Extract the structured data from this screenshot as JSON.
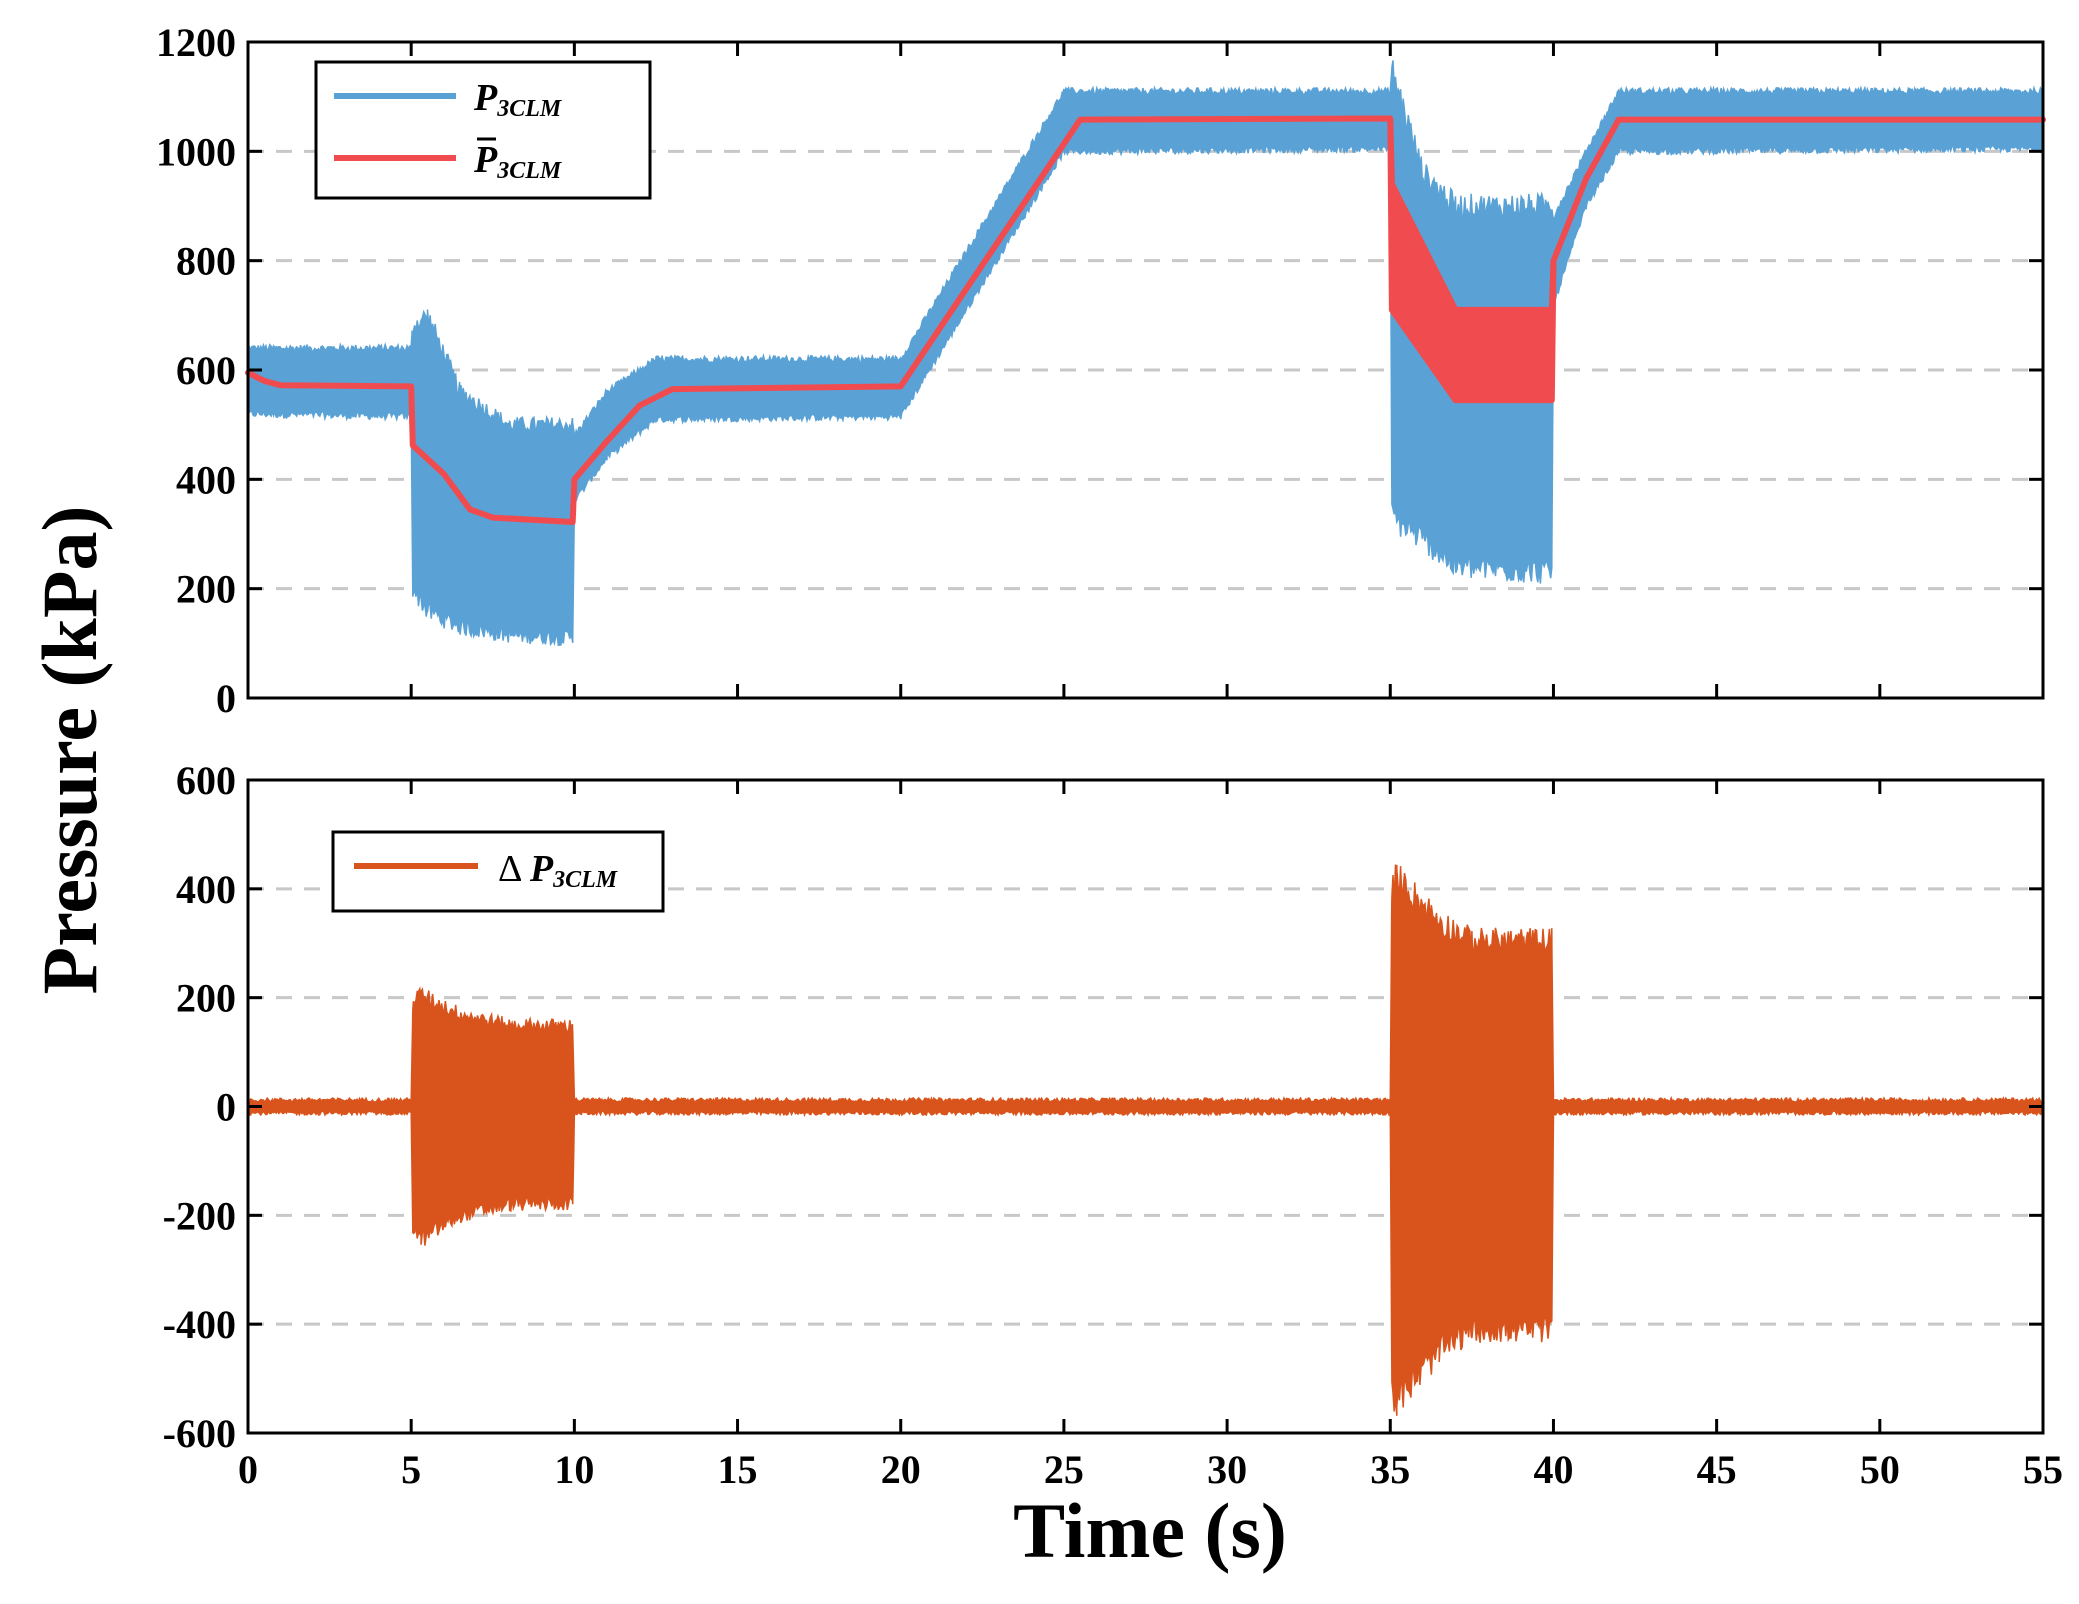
{
  "colors": {
    "p_measured": "#5aa2d6",
    "p_mean": "#f04c4f",
    "delta_p": "#d9541c",
    "grid": "#c8c8c8",
    "axis": "#000000"
  },
  "labels": {
    "ylabel": "Pressure (kPa)",
    "xlabel": "Time (s)"
  },
  "chart_data": [
    {
      "type": "line",
      "panel": "top",
      "xlim": [
        0,
        55
      ],
      "ylim": [
        0,
        1200
      ],
      "xticks": [
        0,
        5,
        10,
        15,
        20,
        25,
        30,
        35,
        40,
        45,
        50,
        55
      ],
      "yticks": [
        0,
        200,
        400,
        600,
        800,
        1000,
        1200
      ],
      "ytick_labels": [
        "0",
        "200",
        "400",
        "600",
        "800",
        "1000",
        "1200"
      ],
      "grid": "horizontal-dashed",
      "legend_position": "top-left",
      "legend": [
        {
          "base": "P",
          "sub": "3CLM",
          "bar": false
        },
        {
          "base": "P",
          "sub": "3CLM",
          "bar": true
        }
      ],
      "series": [
        {
          "name": "P3CLM",
          "kind": "noisy-band",
          "points": [
            {
              "x": 0,
              "upper": 640,
              "lower": 520
            },
            {
              "x": 5,
              "upper": 640,
              "lower": 515
            },
            {
              "x": 5.05,
              "upper": 680,
              "lower": 200
            },
            {
              "x": 5.5,
              "upper": 700,
              "lower": 160
            },
            {
              "x": 6.5,
              "upper": 560,
              "lower": 130
            },
            {
              "x": 8,
              "upper": 500,
              "lower": 115
            },
            {
              "x": 9.95,
              "upper": 500,
              "lower": 110
            },
            {
              "x": 10,
              "upper": 480,
              "lower": 360
            },
            {
              "x": 11,
              "upper": 560,
              "lower": 440
            },
            {
              "x": 12.5,
              "upper": 620,
              "lower": 510
            },
            {
              "x": 20,
              "upper": 620,
              "lower": 515
            },
            {
              "x": 25,
              "upper": 1110,
              "lower": 1000
            },
            {
              "x": 35,
              "upper": 1110,
              "lower": 1005
            },
            {
              "x": 35.05,
              "upper": 1150,
              "lower": 330
            },
            {
              "x": 36,
              "upper": 960,
              "lower": 290
            },
            {
              "x": 37,
              "upper": 900,
              "lower": 240
            },
            {
              "x": 39.95,
              "upper": 900,
              "lower": 230
            },
            {
              "x": 40,
              "upper": 880,
              "lower": 720
            },
            {
              "x": 41,
              "upper": 1000,
              "lower": 900
            },
            {
              "x": 42,
              "upper": 1110,
              "lower": 1000
            },
            {
              "x": 55,
              "upper": 1110,
              "lower": 1005
            }
          ]
        },
        {
          "name": "P3CLM mean",
          "kind": "mean",
          "points": [
            {
              "x": 0,
              "upper": 595,
              "lower": 595
            },
            {
              "x": 0.5,
              "upper": 580,
              "lower": 580
            },
            {
              "x": 1,
              "upper": 572,
              "lower": 572
            },
            {
              "x": 5,
              "upper": 570,
              "lower": 570
            },
            {
              "x": 5.05,
              "upper": 462,
              "lower": 462
            },
            {
              "x": 6,
              "upper": 410,
              "lower": 410
            },
            {
              "x": 6.8,
              "upper": 345,
              "lower": 345
            },
            {
              "x": 7.5,
              "upper": 330,
              "lower": 330
            },
            {
              "x": 9.95,
              "upper": 322,
              "lower": 322
            },
            {
              "x": 10,
              "upper": 400,
              "lower": 400
            },
            {
              "x": 11,
              "upper": 470,
              "lower": 470
            },
            {
              "x": 12,
              "upper": 535,
              "lower": 535
            },
            {
              "x": 13,
              "upper": 565,
              "lower": 565
            },
            {
              "x": 20,
              "upper": 570,
              "lower": 570
            },
            {
              "x": 25.5,
              "upper": 1058,
              "lower": 1058
            },
            {
              "x": 35,
              "upper": 1060,
              "lower": 1060
            },
            {
              "x": 35.05,
              "upper": 940,
              "lower": 710
            },
            {
              "x": 37,
              "upper": 710,
              "lower": 545
            },
            {
              "x": 39.95,
              "upper": 710,
              "lower": 545
            },
            {
              "x": 40,
              "upper": 800,
              "lower": 800
            },
            {
              "x": 41,
              "upper": 950,
              "lower": 950
            },
            {
              "x": 42,
              "upper": 1058,
              "lower": 1058
            },
            {
              "x": 55,
              "upper": 1058,
              "lower": 1058
            }
          ]
        }
      ]
    },
    {
      "type": "line",
      "panel": "bottom",
      "xlim": [
        0,
        55
      ],
      "ylim": [
        -600,
        600
      ],
      "xticks": [
        0,
        5,
        10,
        15,
        20,
        25,
        30,
        35,
        40,
        45,
        50,
        55
      ],
      "yticks": [
        -600,
        -400,
        -200,
        0,
        200,
        400,
        600
      ],
      "ytick_labels": [
        "-600",
        "-400",
        "-200",
        "0",
        "200",
        "400",
        "600"
      ],
      "xtick_labels": [
        "0",
        "5",
        "10",
        "15",
        "20",
        "25",
        "30",
        "35",
        "40",
        "45",
        "50",
        "55"
      ],
      "grid": "horizontal-dashed",
      "legend_position": "top-left",
      "legend": [
        {
          "prefix": "Δ ",
          "base": "P",
          "sub": "3CLM",
          "bar": false
        }
      ],
      "series": [
        {
          "name": "ΔP3CLM",
          "kind": "noisy-band",
          "points": [
            {
              "x": 0,
              "upper": 12,
              "lower": -12
            },
            {
              "x": 5,
              "upper": 12,
              "lower": -12
            },
            {
              "x": 5.05,
              "upper": 190,
              "lower": -220
            },
            {
              "x": 5.3,
              "upper": 205,
              "lower": -245
            },
            {
              "x": 6.5,
              "upper": 170,
              "lower": -200
            },
            {
              "x": 8,
              "upper": 150,
              "lower": -180
            },
            {
              "x": 9.95,
              "upper": 148,
              "lower": -178
            },
            {
              "x": 10,
              "upper": 12,
              "lower": -12
            },
            {
              "x": 35,
              "upper": 12,
              "lower": -12
            },
            {
              "x": 35.05,
              "upper": 400,
              "lower": -520
            },
            {
              "x": 35.2,
              "upper": 420,
              "lower": -540
            },
            {
              "x": 36.5,
              "upper": 340,
              "lower": -450
            },
            {
              "x": 37.5,
              "upper": 305,
              "lower": -410
            },
            {
              "x": 39.95,
              "upper": 305,
              "lower": -410
            },
            {
              "x": 40,
              "upper": 12,
              "lower": -12
            },
            {
              "x": 55,
              "upper": 12,
              "lower": -12
            }
          ]
        }
      ]
    }
  ]
}
